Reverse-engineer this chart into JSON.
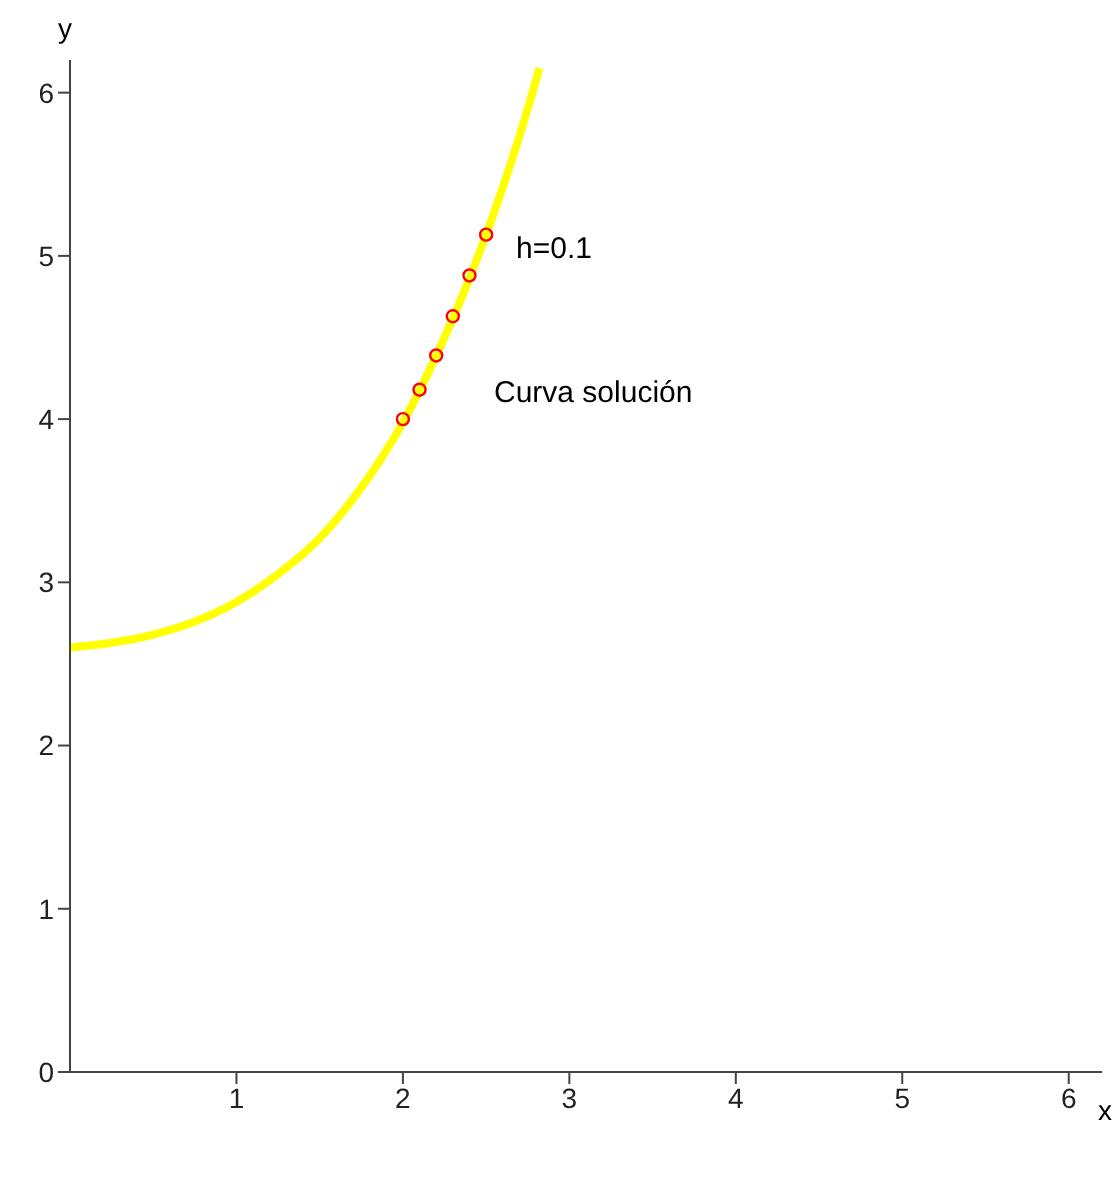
{
  "chart_data": {
    "type": "line",
    "xlabel": "x",
    "ylabel": "y",
    "xlim": [
      0,
      6.2
    ],
    "ylim": [
      0,
      6.2
    ],
    "xticks": [
      1,
      2,
      3,
      4,
      5,
      6
    ],
    "yticks": [
      0,
      1,
      2,
      3,
      4,
      5,
      6
    ],
    "series": [
      {
        "color": "#ffff00",
        "x": [
          0,
          0.25,
          0.5,
          0.75,
          1,
          1.25,
          1.5,
          1.75,
          2,
          2.25,
          2.5,
          2.75,
          2.82
        ],
        "values": [
          2.6,
          2.63,
          2.68,
          2.76,
          2.88,
          3.05,
          3.27,
          3.58,
          3.98,
          4.5,
          5.13,
          5.9,
          6.15
        ]
      },
      {
        "type": "scatter",
        "color": "#ff0000",
        "marker": "circle",
        "x": [
          2,
          2.1,
          2.2,
          2.3,
          2.4,
          2.5
        ],
        "values": [
          4.0,
          4.18,
          4.39,
          4.63,
          4.88,
          5.13
        ]
      }
    ],
    "annotations": [
      "h=0.1",
      "Curva solución"
    ]
  }
}
